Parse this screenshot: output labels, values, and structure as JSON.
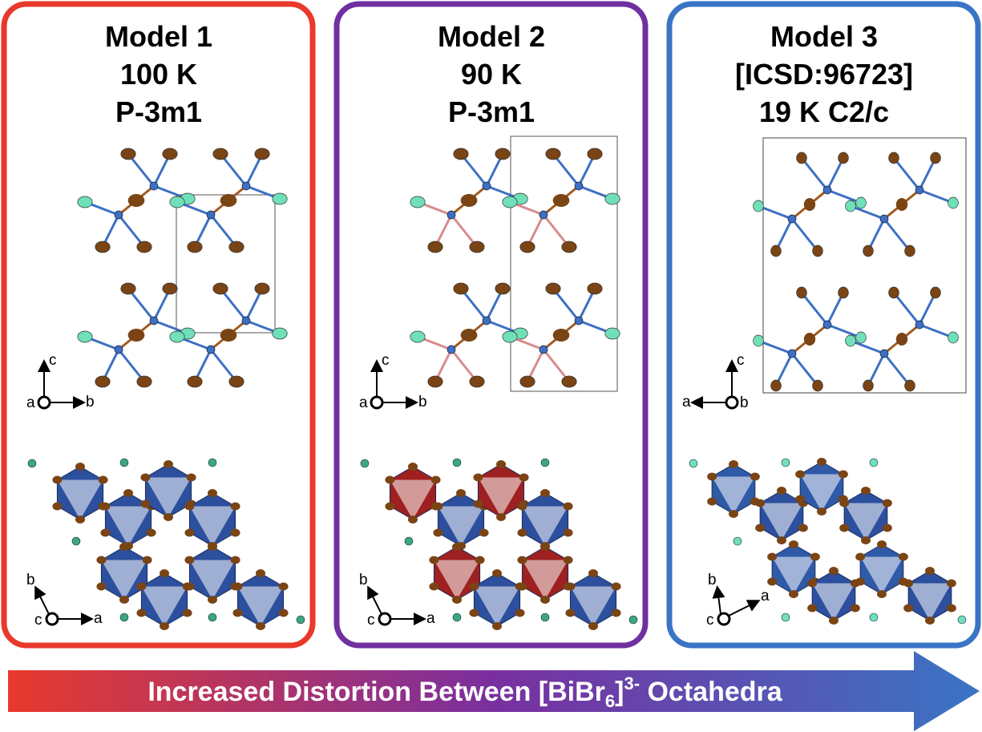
{
  "panels": [
    {
      "title": [
        "Model 1",
        "100 K",
        "P-3m1"
      ],
      "axes_top": [
        "c",
        "a",
        "b"
      ],
      "axes_bottom": [
        "b",
        "c",
        "a"
      ]
    },
    {
      "title": [
        "Model 2",
        "90 K",
        "P-3m1"
      ],
      "axes_top": [
        "c",
        "a",
        "b"
      ],
      "axes_bottom": [
        "b",
        "c",
        "a"
      ]
    },
    {
      "title": [
        "Model 3",
        "[ICSD:96723]",
        "19 K  C2/c"
      ],
      "axes_top": [
        "c",
        "a",
        "b"
      ],
      "axes_bottom": [
        "b",
        "c",
        "a"
      ]
    }
  ],
  "arrow": {
    "text": [
      "Increased Distortion Between [BiBr",
      "6",
      "]",
      "3-",
      " Octahedra"
    ]
  }
}
